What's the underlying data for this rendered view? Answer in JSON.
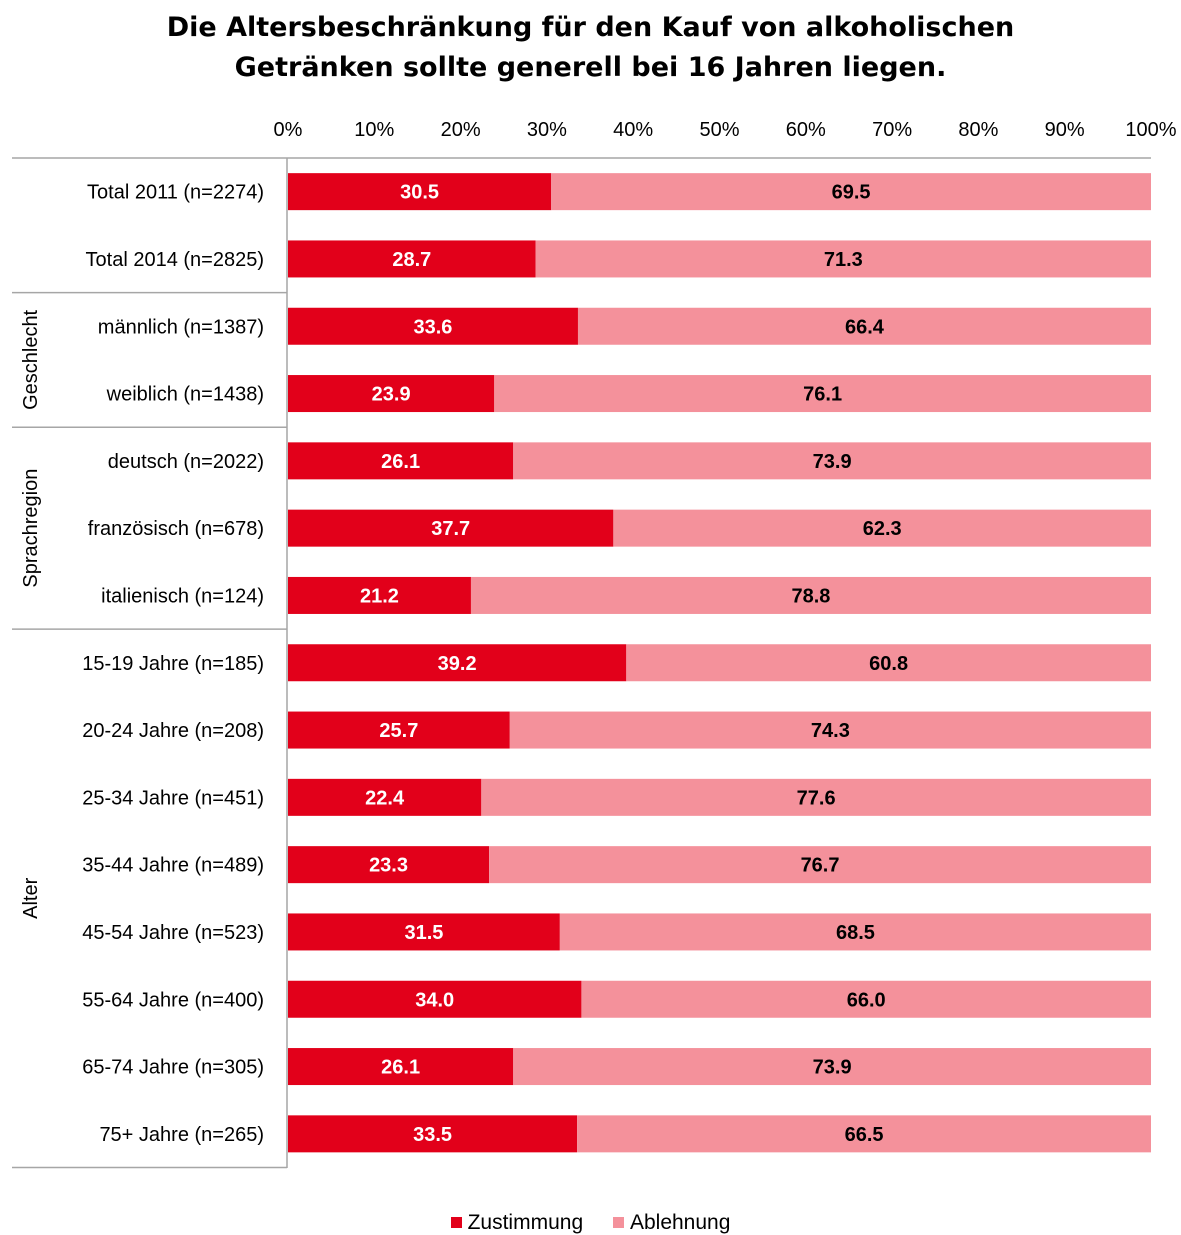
{
  "chart_data": {
    "type": "bar",
    "orientation": "horizontal",
    "stacked": true,
    "title_lines": [
      "Die Altersbeschränkung für den Kauf von alkoholischen",
      "Getränken sollte generell bei 16 Jahren liegen."
    ],
    "x_ticks": [
      "0%",
      "10%",
      "20%",
      "30%",
      "40%",
      "50%",
      "60%",
      "70%",
      "80%",
      "90%",
      "100%"
    ],
    "xlim": [
      0,
      100
    ],
    "groups": [
      {
        "label": "",
        "categories": [
          "Total 2011 (n=2274)",
          "Total 2014 (n=2825)"
        ]
      },
      {
        "label": "Geschlecht",
        "categories": [
          "männlich (n=1387)",
          "weiblich (n=1438)"
        ]
      },
      {
        "label": "Sprachregion",
        "categories": [
          "deutsch (n=2022)",
          "französisch (n=678)",
          "italienisch (n=124)"
        ]
      },
      {
        "label": "Alter",
        "categories": [
          "15-19 Jahre (n=185)",
          "20-24  Jahre (n=208)",
          "25-34  Jahre (n=451)",
          "35-44  Jahre (n=489)",
          "45-54  Jahre (n=523)",
          "55-64  Jahre (n=400)",
          "65-74  Jahre (n=305)",
          "75+ Jahre (n=265)"
        ]
      }
    ],
    "categories": [
      "Total 2011 (n=2274)",
      "Total 2014 (n=2825)",
      "männlich (n=1387)",
      "weiblich (n=1438)",
      "deutsch (n=2022)",
      "französisch (n=678)",
      "italienisch (n=124)",
      "15-19 Jahre (n=185)",
      "20-24  Jahre (n=208)",
      "25-34  Jahre (n=451)",
      "35-44  Jahre (n=489)",
      "45-54  Jahre (n=523)",
      "55-64  Jahre (n=400)",
      "65-74  Jahre (n=305)",
      "75+ Jahre (n=265)"
    ],
    "series": [
      {
        "name": "Zustimmung",
        "color": "#e2001a",
        "values": [
          30.5,
          28.7,
          33.6,
          23.9,
          26.1,
          37.7,
          21.2,
          39.2,
          25.7,
          22.4,
          23.3,
          31.5,
          34.0,
          26.1,
          33.5
        ]
      },
      {
        "name": "Ablehnung",
        "color": "#f4919b",
        "values": [
          69.5,
          71.3,
          66.4,
          76.1,
          73.9,
          62.3,
          78.8,
          60.8,
          74.3,
          77.6,
          76.7,
          68.5,
          66.0,
          73.9,
          66.5
        ]
      }
    ],
    "legend_position": "bottom",
    "grid": false
  }
}
